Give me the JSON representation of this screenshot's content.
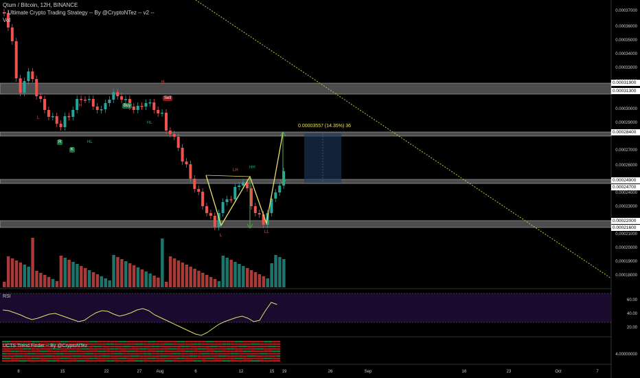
{
  "legend": {
    "title": "Qtum / Bitcoin, 12H, BINANCE",
    "strategy": "-- Ultimate Crypto Trading Strategy -- By @CryptoNTez -- v2 --",
    "volume": "Vol"
  },
  "panes": {
    "rsi_label": "RSI",
    "trend_label": "UCTS Trend Finder -- By @CryptoNTez"
  },
  "price_axis": [
    "0.00037000",
    "0.00036000",
    "0.00035000",
    "0.00034000",
    "0.00033000",
    "0.00032000",
    "0.00030000",
    "0.00029000",
    "0.00027000",
    "0.00026000",
    "0.00024000",
    "0.00023000",
    "0.00021000",
    "0.00020000",
    "0.00019000",
    "0.00018000"
  ],
  "price_badges": [
    "0.00031900",
    "0.00031300",
    "0.00028400",
    "0.00024900",
    "0.00024700",
    "0.00022000",
    "0.00021600"
  ],
  "rsi_axis": [
    "60.00",
    "40.00",
    "20.00"
  ],
  "trend_axis": [
    "4.00000000"
  ],
  "date_axis": [
    "8",
    "15",
    "22",
    "27",
    "Aug",
    "6",
    "12",
    "15",
    "19",
    "26",
    "Sep",
    "16",
    "23",
    "Oct",
    "7"
  ],
  "measure": {
    "text": "0.00003557 (14.35%) 36"
  },
  "signals": {
    "buy": "Buy",
    "sell": "Sell"
  },
  "markers": {
    "R": "R",
    "K": "K",
    "H": "H",
    "HL": "HL",
    "HH": "HH",
    "L": "L",
    "LL": "LL",
    "LH": "LH"
  },
  "colors": {
    "up": "#26a69a",
    "down": "#ef5350",
    "bg": "#000000",
    "pattern": "#e8e06a",
    "rsi_bg": "#1a0b2e"
  }
}
